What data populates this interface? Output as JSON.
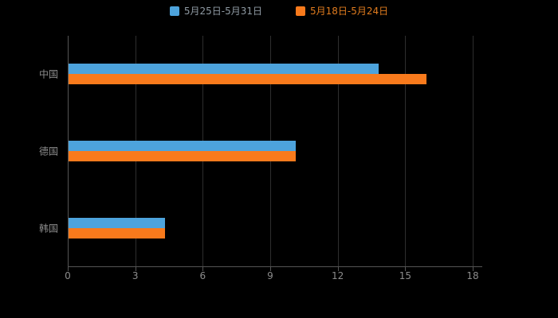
{
  "chart_data": {
    "type": "bar",
    "orientation": "horizontal",
    "title": "",
    "categories": [
      "中国",
      "德国",
      "韩国"
    ],
    "series": [
      {
        "name": "5月25日-5月31日",
        "color": "#4DA3DC",
        "label_color": "#8f9aa3",
        "values": [
          13.8,
          10.1,
          4.3
        ]
      },
      {
        "name": "5月18日-5月24日",
        "color": "#F87A1C",
        "label_color": "#e07b1e",
        "values": [
          15.9,
          10.1,
          4.3
        ]
      }
    ],
    "xlim": [
      0,
      18
    ],
    "xticks": [
      0,
      3,
      6,
      9,
      12,
      15,
      18
    ],
    "grid": true,
    "legend_position": "top"
  },
  "colors": {
    "background": "#000000",
    "grid_line": "#2e2e2e",
    "axis_line": "#555555",
    "tick_text": "#8c8c8c",
    "category_text": "#8c8c8c"
  }
}
